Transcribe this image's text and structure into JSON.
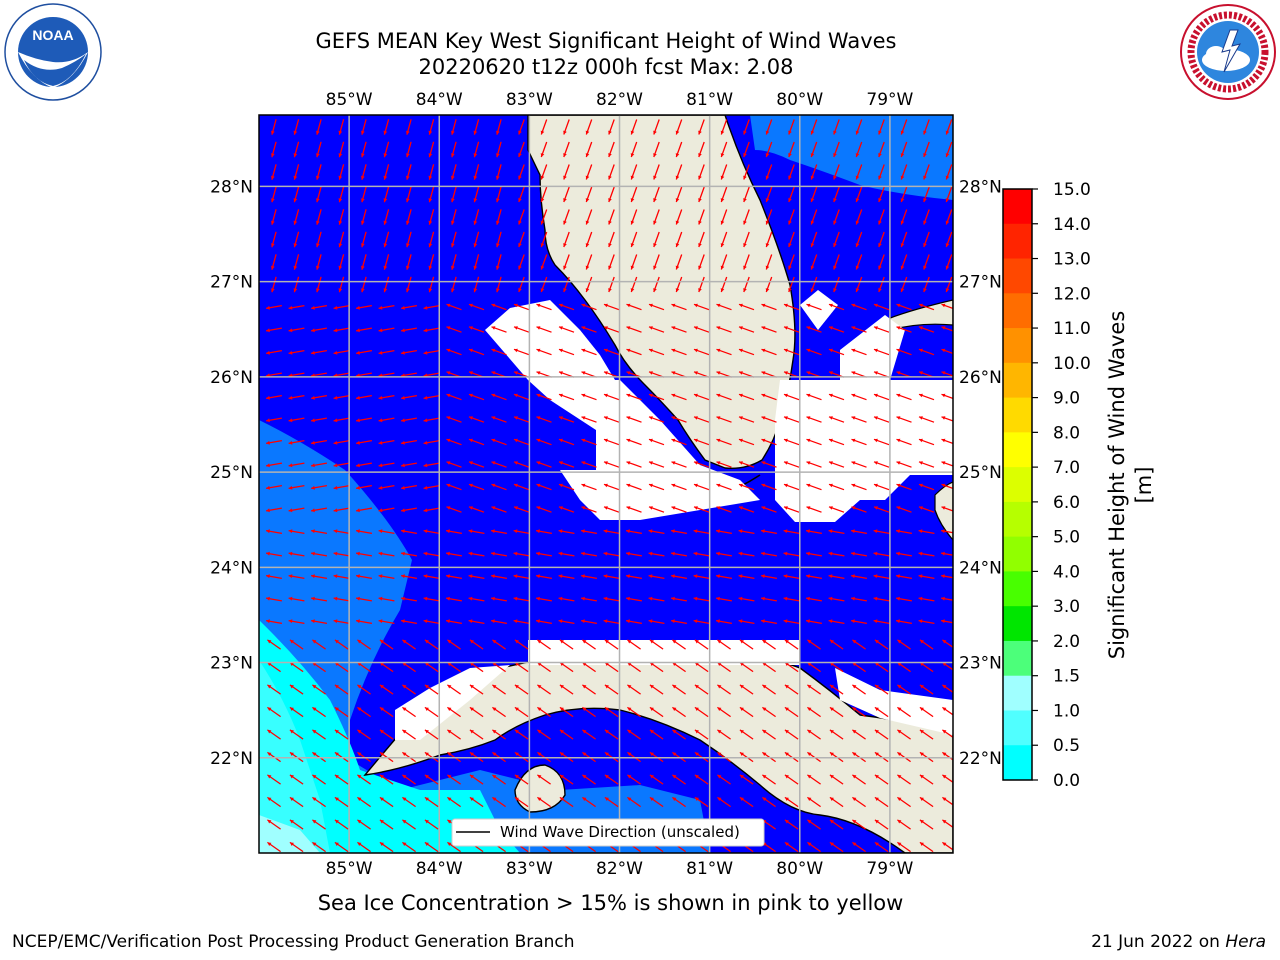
{
  "header": {
    "title": "GEFS MEAN Key West Significant Height of Wind Waves",
    "subtitle": "20220620 t12z 000h fcst   Max: 2.08"
  },
  "logos": {
    "left": {
      "name": "noaa-logo",
      "text": "NOAA",
      "ring": "NATIONAL OCEANIC AND ATMOSPHERIC ADMINISTRATION · U.S. DEPARTMENT OF COMMERCE"
    },
    "right": {
      "name": "nws-logo",
      "ring": "NATIONAL WEATHER SERVICE"
    }
  },
  "map": {
    "lon_labels": [
      "85°W",
      "84°W",
      "83°W",
      "82°W",
      "81°W",
      "80°W",
      "79°W"
    ],
    "lon_values": [
      -85,
      -84,
      -83,
      -82,
      -81,
      -80,
      -79
    ],
    "lat_labels": [
      "28°N",
      "27°N",
      "26°N",
      "25°N",
      "24°N",
      "23°N",
      "22°N"
    ],
    "lat_values": [
      28,
      27,
      26,
      25,
      24,
      23,
      22
    ],
    "extent": {
      "lon_min": -86.0,
      "lon_max": -78.3,
      "lat_min": 21.0,
      "lat_max": 28.75
    },
    "legend": {
      "label": "Wind Wave Direction (unscaled)"
    },
    "colors": {
      "land": "#ecebdc",
      "ocean_low": "#0000ff",
      "ocean_mid": "#0a78ff",
      "arrow": "#ff0000",
      "grid": "#b3b3b3"
    }
  },
  "colorbar": {
    "label": "Significant Height of Wind Waves [m]",
    "ticks": [
      "15.0",
      "14.0",
      "13.0",
      "12.0",
      "11.0",
      "10.0",
      "9.0",
      "8.0",
      "7.0",
      "6.0",
      "5.0",
      "4.0",
      "3.0",
      "2.0",
      "1.5",
      "1.0",
      "0.5",
      "0.0"
    ],
    "colors": [
      "#ff0000",
      "#ff2400",
      "#ff4800",
      "#ff6d00",
      "#ff9100",
      "#ffb600",
      "#ffda00",
      "#ffff00",
      "#dcff00",
      "#b6ff00",
      "#91ff00",
      "#48ff00",
      "#00e600",
      "#4cff7a",
      "#a0ffff",
      "#50ffff",
      "#00ffff",
      "#0a78ff",
      "#0000ff"
    ]
  },
  "caption": "Sea Ice Concentration > 15% is shown in pink to yellow",
  "footer": {
    "left": "NCEP/EMC/Verification Post Processing Product Generation Branch",
    "date": "21 Jun 2022 on ",
    "host": "Hera"
  }
}
